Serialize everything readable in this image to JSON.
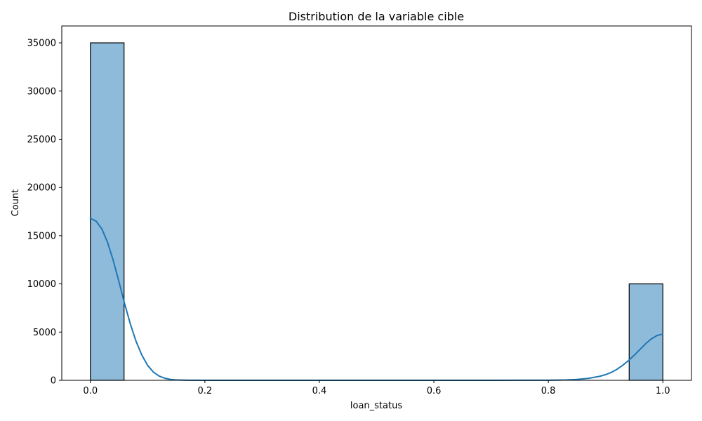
{
  "chart_data": {
    "type": "bar",
    "title": "Distribution de la variable cible",
    "xlabel": "loan_status",
    "ylabel": "Count",
    "xlim": [
      -0.05,
      1.05
    ],
    "ylim": [
      0,
      36750
    ],
    "xticks": [
      0.0,
      0.2,
      0.4,
      0.6,
      0.8,
      1.0
    ],
    "xtick_labels": [
      "0.0",
      "0.2",
      "0.4",
      "0.6",
      "0.8",
      "1.0"
    ],
    "yticks": [
      0,
      5000,
      10000,
      15000,
      20000,
      25000,
      30000,
      35000
    ],
    "ytick_labels": [
      "0",
      "5000",
      "10000",
      "15000",
      "20000",
      "25000",
      "30000",
      "35000"
    ],
    "bins": [
      {
        "x0": 0.0,
        "x1": 0.0588,
        "value": 35000
      },
      {
        "x0": 0.9412,
        "x1": 1.0,
        "value": 10000
      }
    ],
    "kde": {
      "x": [
        0.0,
        0.01,
        0.02,
        0.03,
        0.04,
        0.05,
        0.06,
        0.07,
        0.08,
        0.09,
        0.1,
        0.11,
        0.12,
        0.13,
        0.14,
        0.15,
        0.17,
        0.2,
        0.3,
        0.5,
        0.7,
        0.8,
        0.83,
        0.85,
        0.87,
        0.89,
        0.9,
        0.91,
        0.92,
        0.93,
        0.94,
        0.95,
        0.96,
        0.97,
        0.98,
        0.99,
        1.0
      ],
      "y": [
        16800,
        16500,
        15700,
        14300,
        12400,
        10200,
        7900,
        5800,
        4000,
        2600,
        1550,
        850,
        440,
        210,
        90,
        40,
        10,
        0,
        0,
        0,
        0,
        10,
        40,
        90,
        200,
        420,
        590,
        820,
        1150,
        1560,
        2050,
        2600,
        3200,
        3800,
        4300,
        4650,
        4800
      ]
    },
    "colors": {
      "bar_fill": "#8fbbdb",
      "bar_edge": "#000000",
      "kde_line": "#1f77b4"
    },
    "grid": false,
    "legend": "none"
  }
}
